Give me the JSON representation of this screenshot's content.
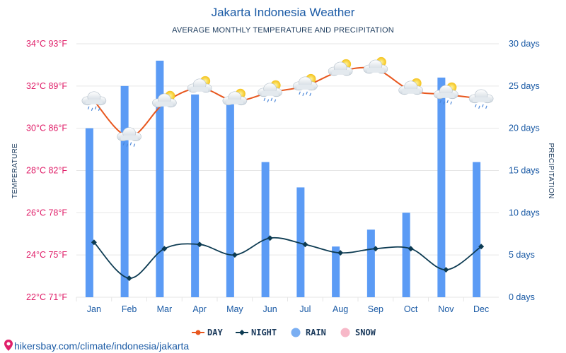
{
  "chart_data": {
    "type": "bar+line",
    "title": "Jakarta Indonesia Weather",
    "subtitle": "AVERAGE MONTHLY TEMPERATURE AND PRECIPITATION",
    "categories": [
      "Jan",
      "Feb",
      "Mar",
      "Apr",
      "May",
      "Jun",
      "Jul",
      "Aug",
      "Sep",
      "Oct",
      "Nov",
      "Dec"
    ],
    "ylabel_left": "TEMPERATURE",
    "ylabel_right": "PRECIPITATION",
    "ylim_left": [
      22,
      34
    ],
    "ylim_right": [
      0,
      30
    ],
    "yticks_left": [
      "22°C 71°F",
      "24°C 75°F",
      "26°C 78°F",
      "28°C 82°F",
      "30°C 86°F",
      "32°C 89°F",
      "34°C 93°F"
    ],
    "yticks_right": [
      "0 days",
      "5 days",
      "10 days",
      "15 days",
      "20 days",
      "25 days",
      "30 days"
    ],
    "series": [
      {
        "name": "DAY",
        "type": "line",
        "axis": "left",
        "color": "#e8571e",
        "values": [
          31.3,
          29.6,
          31.2,
          31.9,
          31.3,
          31.7,
          32.0,
          32.7,
          32.8,
          31.8,
          31.6,
          31.4
        ]
      },
      {
        "name": "NIGHT",
        "type": "line",
        "axis": "left",
        "color": "#0d3b52",
        "values": [
          24.6,
          22.9,
          24.3,
          24.5,
          24.0,
          24.8,
          24.5,
          24.1,
          24.3,
          24.3,
          23.3,
          24.4
        ]
      },
      {
        "name": "RAIN",
        "type": "bar",
        "axis": "right",
        "color": "#5b9bf5",
        "values": [
          20,
          25,
          28,
          24,
          23,
          16,
          13,
          6,
          8,
          10,
          26,
          16
        ]
      },
      {
        "name": "SNOW",
        "type": "bar",
        "axis": "right",
        "color": "#f7b8c8",
        "values": [
          0,
          0,
          0,
          0,
          0,
          0,
          0,
          0,
          0,
          0,
          0,
          0
        ]
      }
    ],
    "weather_icons": [
      "rain-cloud",
      "rain-cloud",
      "sun-cloud",
      "sun-cloud",
      "sun-cloud",
      "sun-cloud-rain",
      "sun-cloud-rain",
      "sun-cloud",
      "sun-cloud",
      "sun-cloud",
      "sun-cloud-rain",
      "rain-cloud"
    ],
    "legend": [
      "DAY",
      "NIGHT",
      "RAIN",
      "SNOW"
    ],
    "legend_position": "bottom-center"
  },
  "source": "hikersbay.com/climate/indonesia/jakarta"
}
